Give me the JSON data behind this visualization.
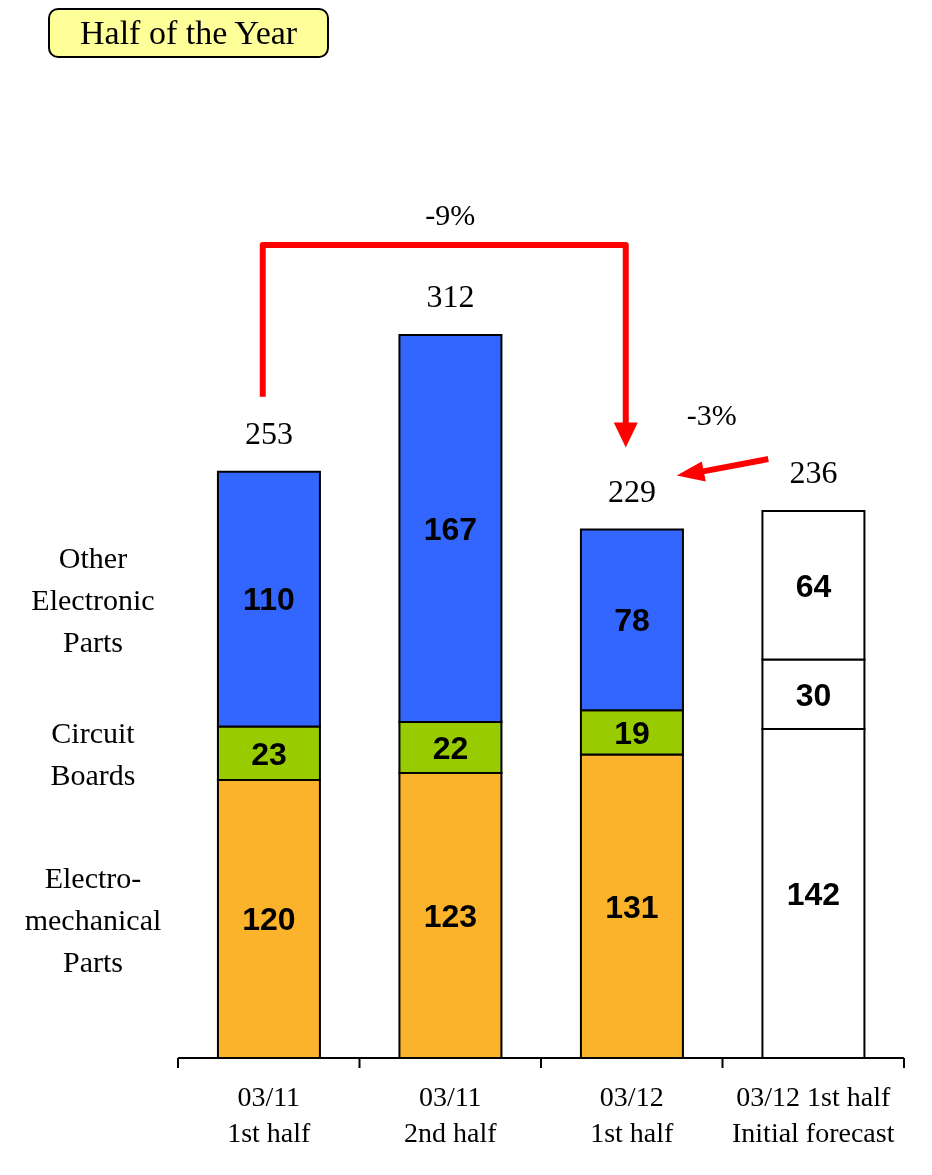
{
  "chart_data": {
    "type": "bar",
    "title": "Half of the Year",
    "stacked": true,
    "data_labels": true,
    "categories": [
      "03/11\n1st half",
      "03/11\n2nd half",
      "03/12\n1st half",
      "03/12 1st half\nInitial forecast"
    ],
    "series": [
      {
        "name": "Electro-\nmechanical\nParts",
        "color": "#fbb32b",
        "colors": [
          null,
          null,
          null,
          "#ffffff"
        ],
        "values": [
          120,
          123,
          131,
          142
        ]
      },
      {
        "name": "Circuit\nBoards",
        "color": "#99cc00",
        "colors": [
          null,
          null,
          null,
          "#ffffff"
        ],
        "values": [
          23,
          22,
          19,
          30
        ]
      },
      {
        "name": "Other\nElectronic\nParts",
        "color": "#3366ff",
        "colors": [
          null,
          null,
          null,
          "#ffffff"
        ],
        "values": [
          110,
          167,
          78,
          64
        ]
      }
    ],
    "totals": [
      "253",
      "312",
      "229",
      "236"
    ],
    "annotations": [
      "-9%",
      "-3%"
    ]
  }
}
